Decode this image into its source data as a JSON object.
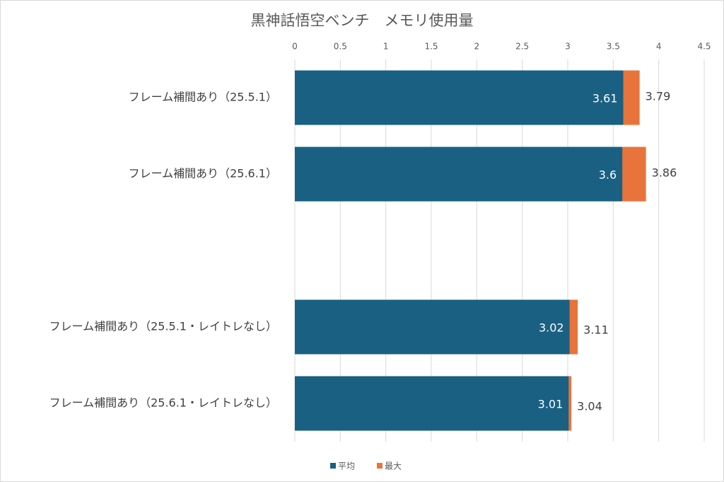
{
  "chart_data": {
    "type": "bar",
    "orientation": "horizontal",
    "overlap": true,
    "title": "黒神話悟空ベンチ　メモリ使用量",
    "categories": [
      "フレーム補間あり（25.5.1）",
      "フレーム補間あり（25.6.1）",
      null,
      "フレーム補間あり（25.5.1・レイトレなし）",
      "フレーム補間あり（25.6.1・レイトレなし）"
    ],
    "series": [
      {
        "name": "平均",
        "color": "#1a6082",
        "values": [
          3.61,
          3.6,
          null,
          3.02,
          3.01
        ]
      },
      {
        "name": "最大",
        "color": "#e8743b",
        "values": [
          3.79,
          3.86,
          null,
          3.11,
          3.04
        ]
      }
    ],
    "xlim": [
      0,
      4.5
    ],
    "xticks": [
      0,
      0.5,
      1,
      1.5,
      2,
      2.5,
      3,
      3.5,
      4,
      4.5
    ],
    "grid": true,
    "legend": "bottom"
  }
}
